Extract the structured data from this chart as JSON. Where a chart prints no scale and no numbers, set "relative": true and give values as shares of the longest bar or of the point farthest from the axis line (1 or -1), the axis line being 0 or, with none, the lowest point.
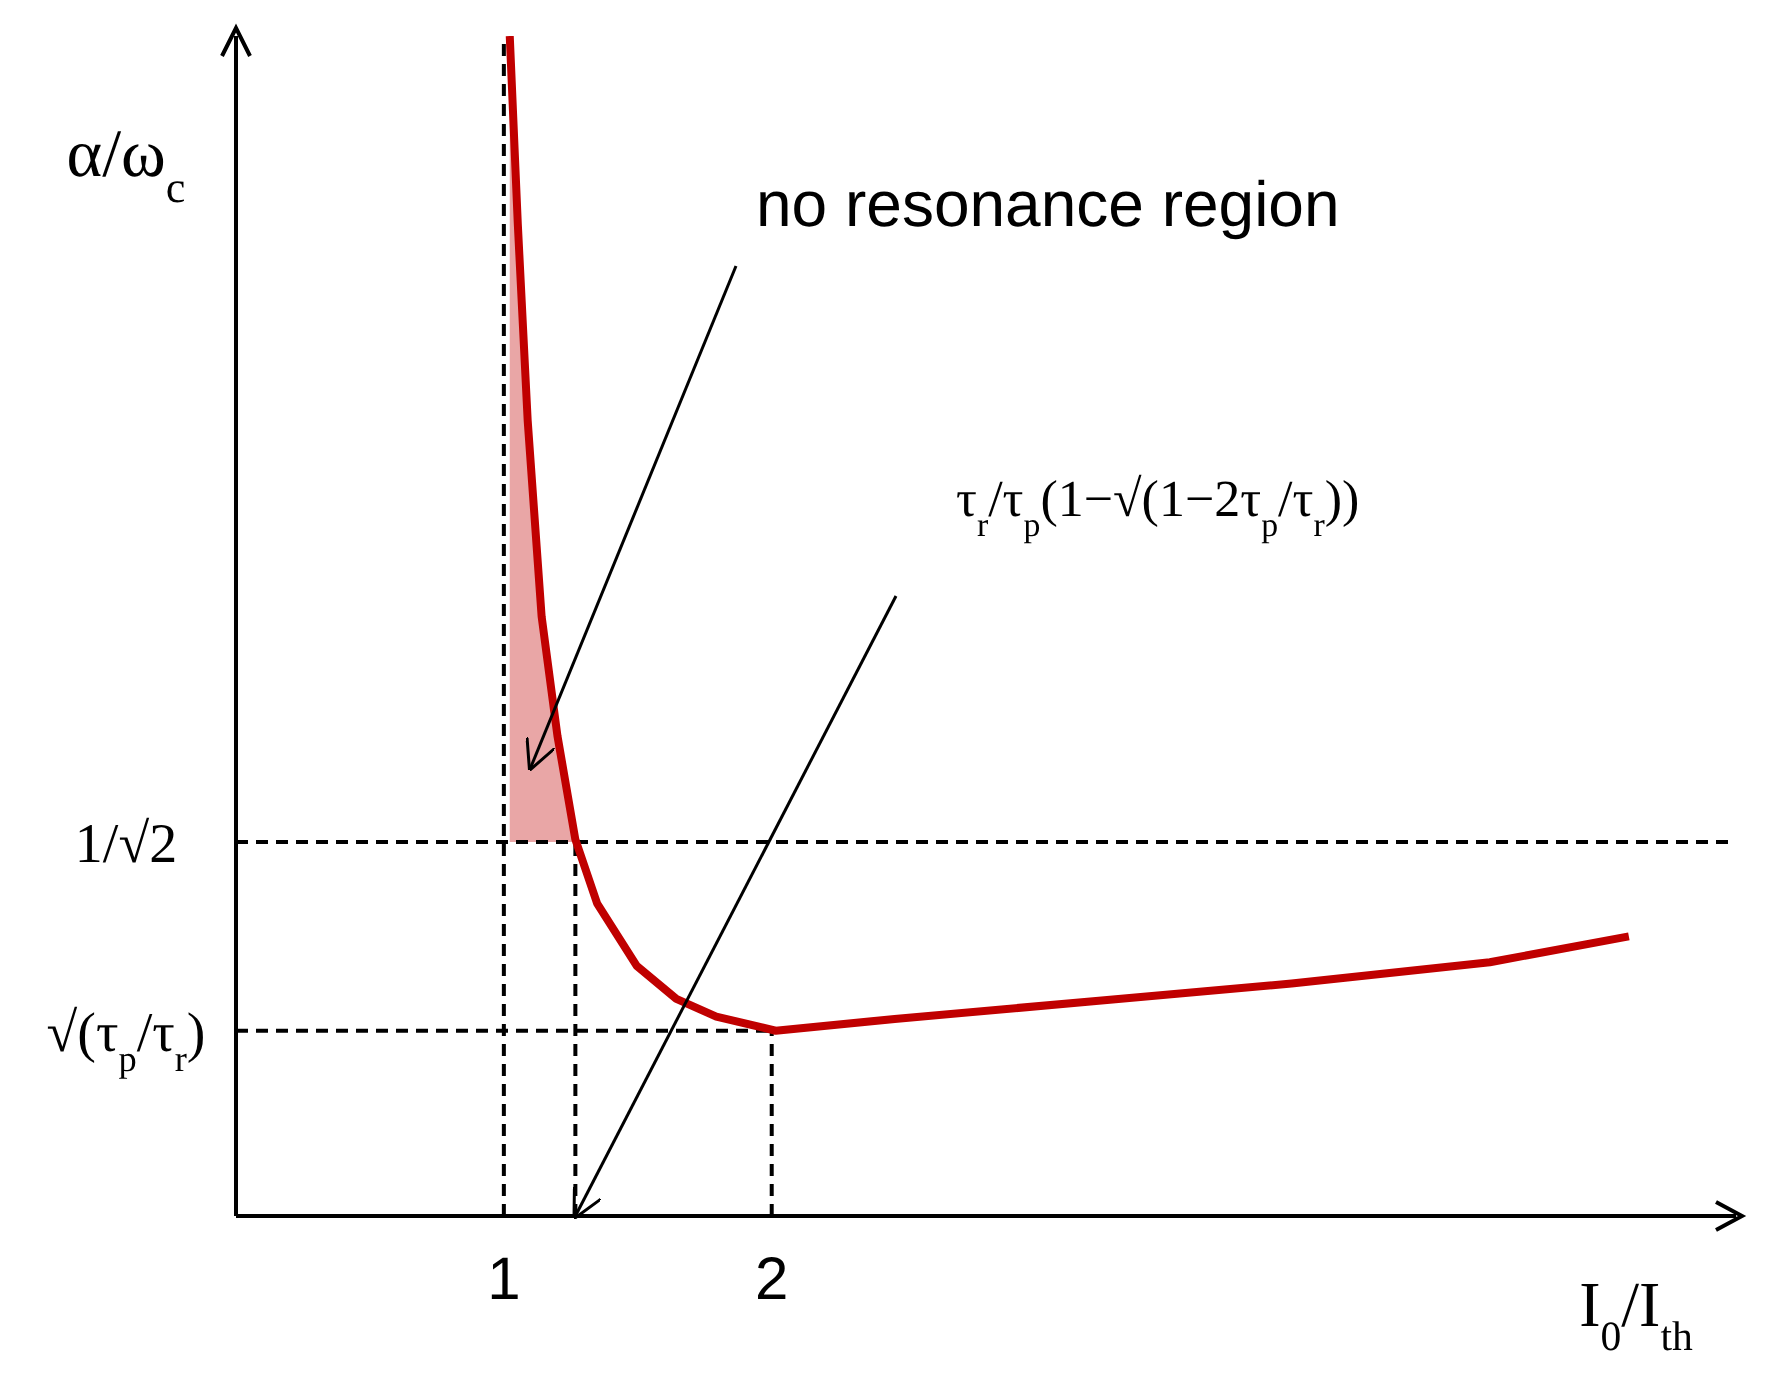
{
  "chart_data": {
    "type": "line",
    "relative": true,
    "xlabel": "I$_{0}$/I$_{th}$",
    "ylabel": "α/ω$_{c}$",
    "xlim": [
      0,
      5.6
    ],
    "xticks": [
      1,
      2
    ],
    "series": [
      {
        "color": "#c00000",
        "x": [
          1.022,
          1.052,
          1.089,
          1.141,
          1.2,
          1.267,
          1.348,
          1.496,
          1.644,
          1.793,
          2.015,
          2.459,
          3.2,
          3.941,
          4.681,
          5.2
        ],
        "values": [
          1,
          0.841,
          0.674,
          0.508,
          0.407,
          0.319,
          0.265,
          0.212,
          0.184,
          0.169,
          0.157,
          0.167,
          0.182,
          0.197,
          0.215,
          0.237
        ],
        "lower": [
          0.317,
          0.317,
          0.317,
          0.317,
          0.317,
          0.317,
          null,
          null,
          null,
          null,
          null,
          null,
          null,
          null,
          null,
          null
        ],
        "upper": [
          1,
          0.841,
          0.674,
          0.508,
          0.407,
          0.319,
          null,
          null,
          null,
          null,
          null,
          null,
          null,
          null,
          null,
          null
        ]
      }
    ],
    "marker": "none",
    "line_style": "solid",
    "ref_lines": [
      {
        "axis": "x",
        "value": 1,
        "line_style": "dashed",
        "color": "#000000"
      },
      {
        "axis": "x",
        "value": 1.267,
        "line_style": "dashed",
        "color": "#000000"
      },
      {
        "axis": "x",
        "value": 2,
        "line_style": "dashed",
        "color": "#000000"
      },
      {
        "axis": "y",
        "value": 0.317,
        "label": "1/√2",
        "line_style": "dashed",
        "color": "#000000"
      },
      {
        "axis": "y",
        "value": 0.157,
        "label": "√(τ$_{p}$/τ$_{r}$)",
        "line_style": "dashed",
        "color": "#000000"
      }
    ],
    "annotations": [
      "no resonance region",
      "τ$_{r}$/τ$_{p}$(1−√(1−2τ$_{p}$/τ$_{r}$))"
    ]
  }
}
